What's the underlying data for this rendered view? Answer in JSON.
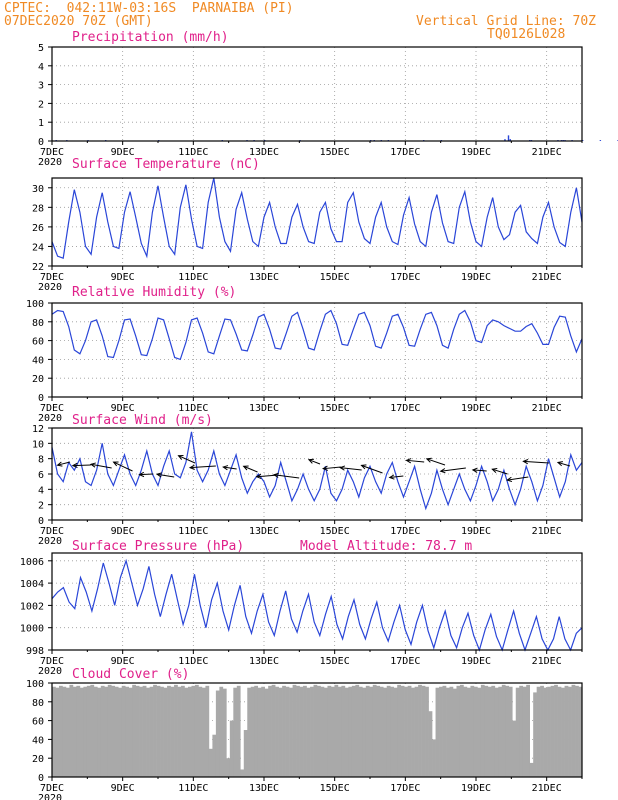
{
  "header": {
    "line1": "CPTEC:  042:11W-03:16S  PARNAIBA (PI)",
    "line2": "07DEC2020 70Z (GMT)",
    "right1": "Vertical Grid Line: 70Z",
    "right2": "TQ0126L028"
  },
  "model_altitude": "Model Altitude: 78.7 m",
  "x_tick_labels": [
    "7DEC",
    "9DEC",
    "11DEC",
    "13DEC",
    "15DEC",
    "17DEC",
    "19DEC",
    "21DEC"
  ],
  "x_year_label": "2020",
  "colors": {
    "line": "#2a46d8",
    "bar": "#2a46d8",
    "cloud": "#a9a9a9",
    "title": "#e0208a",
    "header": "#f08a24",
    "grid": "#9a9a9a"
  },
  "chart_data": [
    {
      "type": "bar",
      "title": "Precipitation (mm/h)",
      "ylim": [
        0,
        5
      ],
      "yticks": [
        0,
        1,
        2,
        3,
        4,
        5
      ],
      "x_unit": "days since 7DEC",
      "x": [
        0.1,
        0.4,
        1.0,
        1.5,
        3.0,
        4.8,
        5.5,
        5.7,
        6.0,
        7.0,
        9.0,
        9.1,
        9.3,
        9.5,
        10.5,
        11.0,
        12.8,
        12.9,
        12.95,
        13.5,
        13.55,
        14.3,
        14.4,
        14.45,
        14.5,
        14.7,
        15.0,
        15.5,
        16.0,
        16.3,
        17.0,
        17.5,
        18.0,
        18.5,
        19.0,
        19.5,
        20.0,
        20.5,
        21.0,
        22.5,
        22.6,
        23.0,
        23.5,
        24.0,
        25.0,
        25.5,
        25.6,
        25.7,
        25.8,
        25.9,
        26.0,
        26.1,
        26.5,
        26.7,
        26.8,
        27.5,
        28.5,
        29.0,
        29.1,
        29.2,
        29.3,
        29.4,
        29.5,
        29.6,
        29.7,
        29.8,
        29.9,
        30.0,
        30.1,
        30.2,
        30.3,
        30.4,
        30.5,
        30.9,
        31.6,
        31.7,
        31.8,
        32.8,
        33.1,
        33.5,
        34.0,
        34.2,
        34.4
      ],
      "values": [
        0.05,
        0.05,
        0.05,
        0.05,
        0.05,
        0.05,
        0.05,
        0.05,
        0.05,
        0.05,
        0.05,
        0.05,
        0.05,
        0.05,
        0.05,
        0.05,
        0.1,
        0.3,
        0.1,
        0.05,
        0.05,
        0.05,
        0.05,
        0.05,
        0.05,
        0.05,
        0.05,
        0.05,
        0.05,
        0.05,
        0.05,
        0.05,
        0.1,
        0.05,
        0.05,
        0.05,
        0.05,
        0.05,
        0.05,
        0.05,
        0.05,
        0.05,
        0.05,
        0.05,
        0.05,
        0.05,
        0.05,
        0.05,
        0.05,
        0.05,
        0.05,
        0.05,
        0.05,
        0.05,
        0.05,
        0.05,
        0.05,
        0.05,
        0.05,
        0.05,
        0.05,
        0.05,
        0.05,
        0.05,
        0.05,
        0.05,
        0.05,
        0.05,
        0.05,
        0.05,
        0.05,
        0.05,
        0.05,
        0.05,
        0.05,
        0.05,
        0.05,
        0.05,
        0.05,
        0.05,
        0.05,
        0.05,
        0.05
      ]
    },
    {
      "type": "line",
      "title": "Surface Temperature (nC)",
      "ylim": [
        22,
        31
      ],
      "yticks": [
        22,
        24,
        26,
        28,
        30
      ],
      "values": [
        24.5,
        23.0,
        22.8,
        26.5,
        29.8,
        27.5,
        24.0,
        23.2,
        27.0,
        29.5,
        26.5,
        24.0,
        23.8,
        27.5,
        29.6,
        27.0,
        24.3,
        23.0,
        27.5,
        30.2,
        27.0,
        24.0,
        23.2,
        28.0,
        30.3,
        26.8,
        24.0,
        23.8,
        28.5,
        31.0,
        27.0,
        24.5,
        23.5,
        27.8,
        29.5,
        26.8,
        24.5,
        24.0,
        27.0,
        28.5,
        26.0,
        24.3,
        24.3,
        27.0,
        28.3,
        26.0,
        24.5,
        24.3,
        27.5,
        28.5,
        25.8,
        24.5,
        24.5,
        28.5,
        29.5,
        26.5,
        24.8,
        24.3,
        27.0,
        28.5,
        26.0,
        24.5,
        24.2,
        27.2,
        29.0,
        26.3,
        24.5,
        24.0,
        27.5,
        29.3,
        26.4,
        24.5,
        24.3,
        28.0,
        29.6,
        26.5,
        24.5,
        24.0,
        27.0,
        29.0,
        26.0,
        24.7,
        25.2,
        27.5,
        28.2,
        25.5,
        24.8,
        24.3,
        27.0,
        28.5,
        26.0,
        24.4,
        24.0,
        27.5,
        30.0,
        26.5
      ]
    },
    {
      "type": "line",
      "title": "Relative Humidity (%)",
      "ylim": [
        0,
        100
      ],
      "yticks": [
        0,
        20,
        40,
        60,
        80,
        100
      ],
      "values": [
        88,
        92,
        91,
        75,
        50,
        46,
        60,
        80,
        82,
        65,
        43,
        42,
        60,
        82,
        83,
        65,
        45,
        44,
        62,
        84,
        82,
        62,
        42,
        40,
        58,
        82,
        84,
        68,
        48,
        46,
        65,
        83,
        82,
        67,
        50,
        49,
        66,
        85,
        88,
        72,
        52,
        51,
        68,
        86,
        90,
        72,
        52,
        50,
        70,
        88,
        92,
        78,
        56,
        55,
        72,
        88,
        90,
        76,
        54,
        52,
        68,
        86,
        88,
        74,
        55,
        54,
        72,
        88,
        90,
        76,
        55,
        52,
        72,
        88,
        92,
        80,
        60,
        58,
        76,
        82,
        80,
        76,
        73,
        70,
        70,
        75,
        78,
        68,
        56,
        56,
        74,
        86,
        85,
        65,
        48,
        62
      ]
    },
    {
      "type": "line",
      "title": "Surface Wind (m/s)",
      "ylim": [
        0,
        12
      ],
      "yticks": [
        0,
        2,
        4,
        6,
        8,
        10,
        12
      ],
      "values": [
        9.5,
        6,
        5,
        7.5,
        6.5,
        8,
        5,
        4.5,
        6.5,
        10,
        6,
        4.5,
        6.5,
        8.5,
        6,
        4.5,
        6.5,
        9,
        6,
        4.5,
        7,
        9,
        6,
        5.5,
        7.5,
        11.5,
        6.5,
        5,
        6.5,
        9,
        6,
        4.5,
        6.5,
        8.5,
        5.5,
        3.5,
        5,
        6,
        5,
        3,
        4.5,
        7.5,
        5,
        2.5,
        4,
        6,
        4,
        2.5,
        4,
        7,
        3.5,
        2.5,
        4,
        6.5,
        5,
        3,
        5.5,
        7,
        5,
        3.5,
        6,
        7.5,
        5,
        3,
        5,
        7,
        4,
        1.5,
        3.5,
        6.5,
        4,
        2,
        4,
        6,
        4,
        2.5,
        4.5,
        7,
        5,
        2.5,
        4,
        6.5,
        4,
        2,
        4,
        7,
        5,
        2.5,
        4.5,
        8,
        5.5,
        3,
        5,
        8.5,
        6.5,
        7.5
      ],
      "vector_count": 25
    },
    {
      "type": "line",
      "title": "Surface Pressure (hPa)",
      "ylim": [
        998,
        1006.7
      ],
      "yticks": [
        998,
        1000,
        1002,
        1004,
        1006
      ],
      "values": [
        1002.6,
        1003.2,
        1003.6,
        1002.3,
        1001.7,
        1004.5,
        1003.2,
        1001.5,
        1003.5,
        1005.8,
        1004.0,
        1002.0,
        1004.5,
        1006.0,
        1004.0,
        1002.0,
        1003.5,
        1005.5,
        1003.0,
        1001.0,
        1003.0,
        1004.8,
        1002.5,
        1000.3,
        1002.0,
        1004.8,
        1002.0,
        1000.0,
        1002.5,
        1004.0,
        1001.5,
        999.8,
        1002.0,
        1003.8,
        1001.0,
        999.5,
        1001.5,
        1003.0,
        1000.5,
        999.3,
        1001.5,
        1003.3,
        1000.8,
        999.6,
        1001.5,
        1003.0,
        1000.5,
        999.3,
        1001.2,
        1002.8,
        1000.3,
        999.0,
        1001.0,
        1002.5,
        1000.3,
        999.0,
        1000.8,
        1002.3,
        1000.0,
        998.8,
        1000.5,
        1002.0,
        999.8,
        998.5,
        1000.5,
        1002.0,
        999.7,
        998.2,
        1000.0,
        1001.5,
        999.3,
        998.2,
        1000.0,
        1001.3,
        999.3,
        998.0,
        999.8,
        1001.2,
        999.2,
        998.0,
        999.8,
        1001.5,
        999.5,
        998.0,
        999.5,
        1001.0,
        999.0,
        998.0,
        999.0,
        1001.0,
        999.0,
        998.0,
        999.5,
        1000.0
      ]
    },
    {
      "type": "area",
      "title": "Cloud Cover (%)",
      "ylim": [
        0,
        100
      ],
      "yticks": [
        0,
        20,
        40,
        60,
        80,
        100
      ],
      "values": [
        96,
        95,
        97,
        96,
        95,
        98,
        96,
        97,
        95,
        96,
        97,
        98,
        96,
        95,
        97,
        96,
        98,
        97,
        96,
        95,
        97,
        96,
        95,
        98,
        97,
        96,
        97,
        95,
        96,
        98,
        97,
        96,
        95,
        97,
        96,
        98,
        96,
        97,
        95,
        96,
        97,
        98,
        96,
        95,
        97,
        30,
        45,
        92,
        96,
        94,
        20,
        60,
        95,
        97,
        8,
        50,
        95,
        96,
        97,
        95,
        96,
        94,
        97,
        98,
        96,
        95,
        97,
        96,
        95,
        98,
        97,
        96,
        97,
        95,
        96,
        98,
        97,
        96,
        95,
        97,
        96,
        98,
        96,
        97,
        95,
        96,
        97,
        98,
        96,
        95,
        97,
        96,
        98,
        97,
        96,
        95,
        97,
        96,
        95,
        98,
        97,
        96,
        97,
        95,
        96,
        98,
        97,
        96,
        70,
        40,
        95,
        96,
        97,
        95,
        96,
        94,
        97,
        98,
        96,
        95,
        97,
        96,
        95,
        98,
        97,
        96,
        97,
        95,
        96,
        98,
        97,
        96,
        60,
        95,
        97,
        96,
        98,
        15,
        90,
        96,
        97,
        95,
        96,
        97,
        98,
        96,
        95,
        97,
        96,
        98,
        97,
        96
      ]
    }
  ]
}
